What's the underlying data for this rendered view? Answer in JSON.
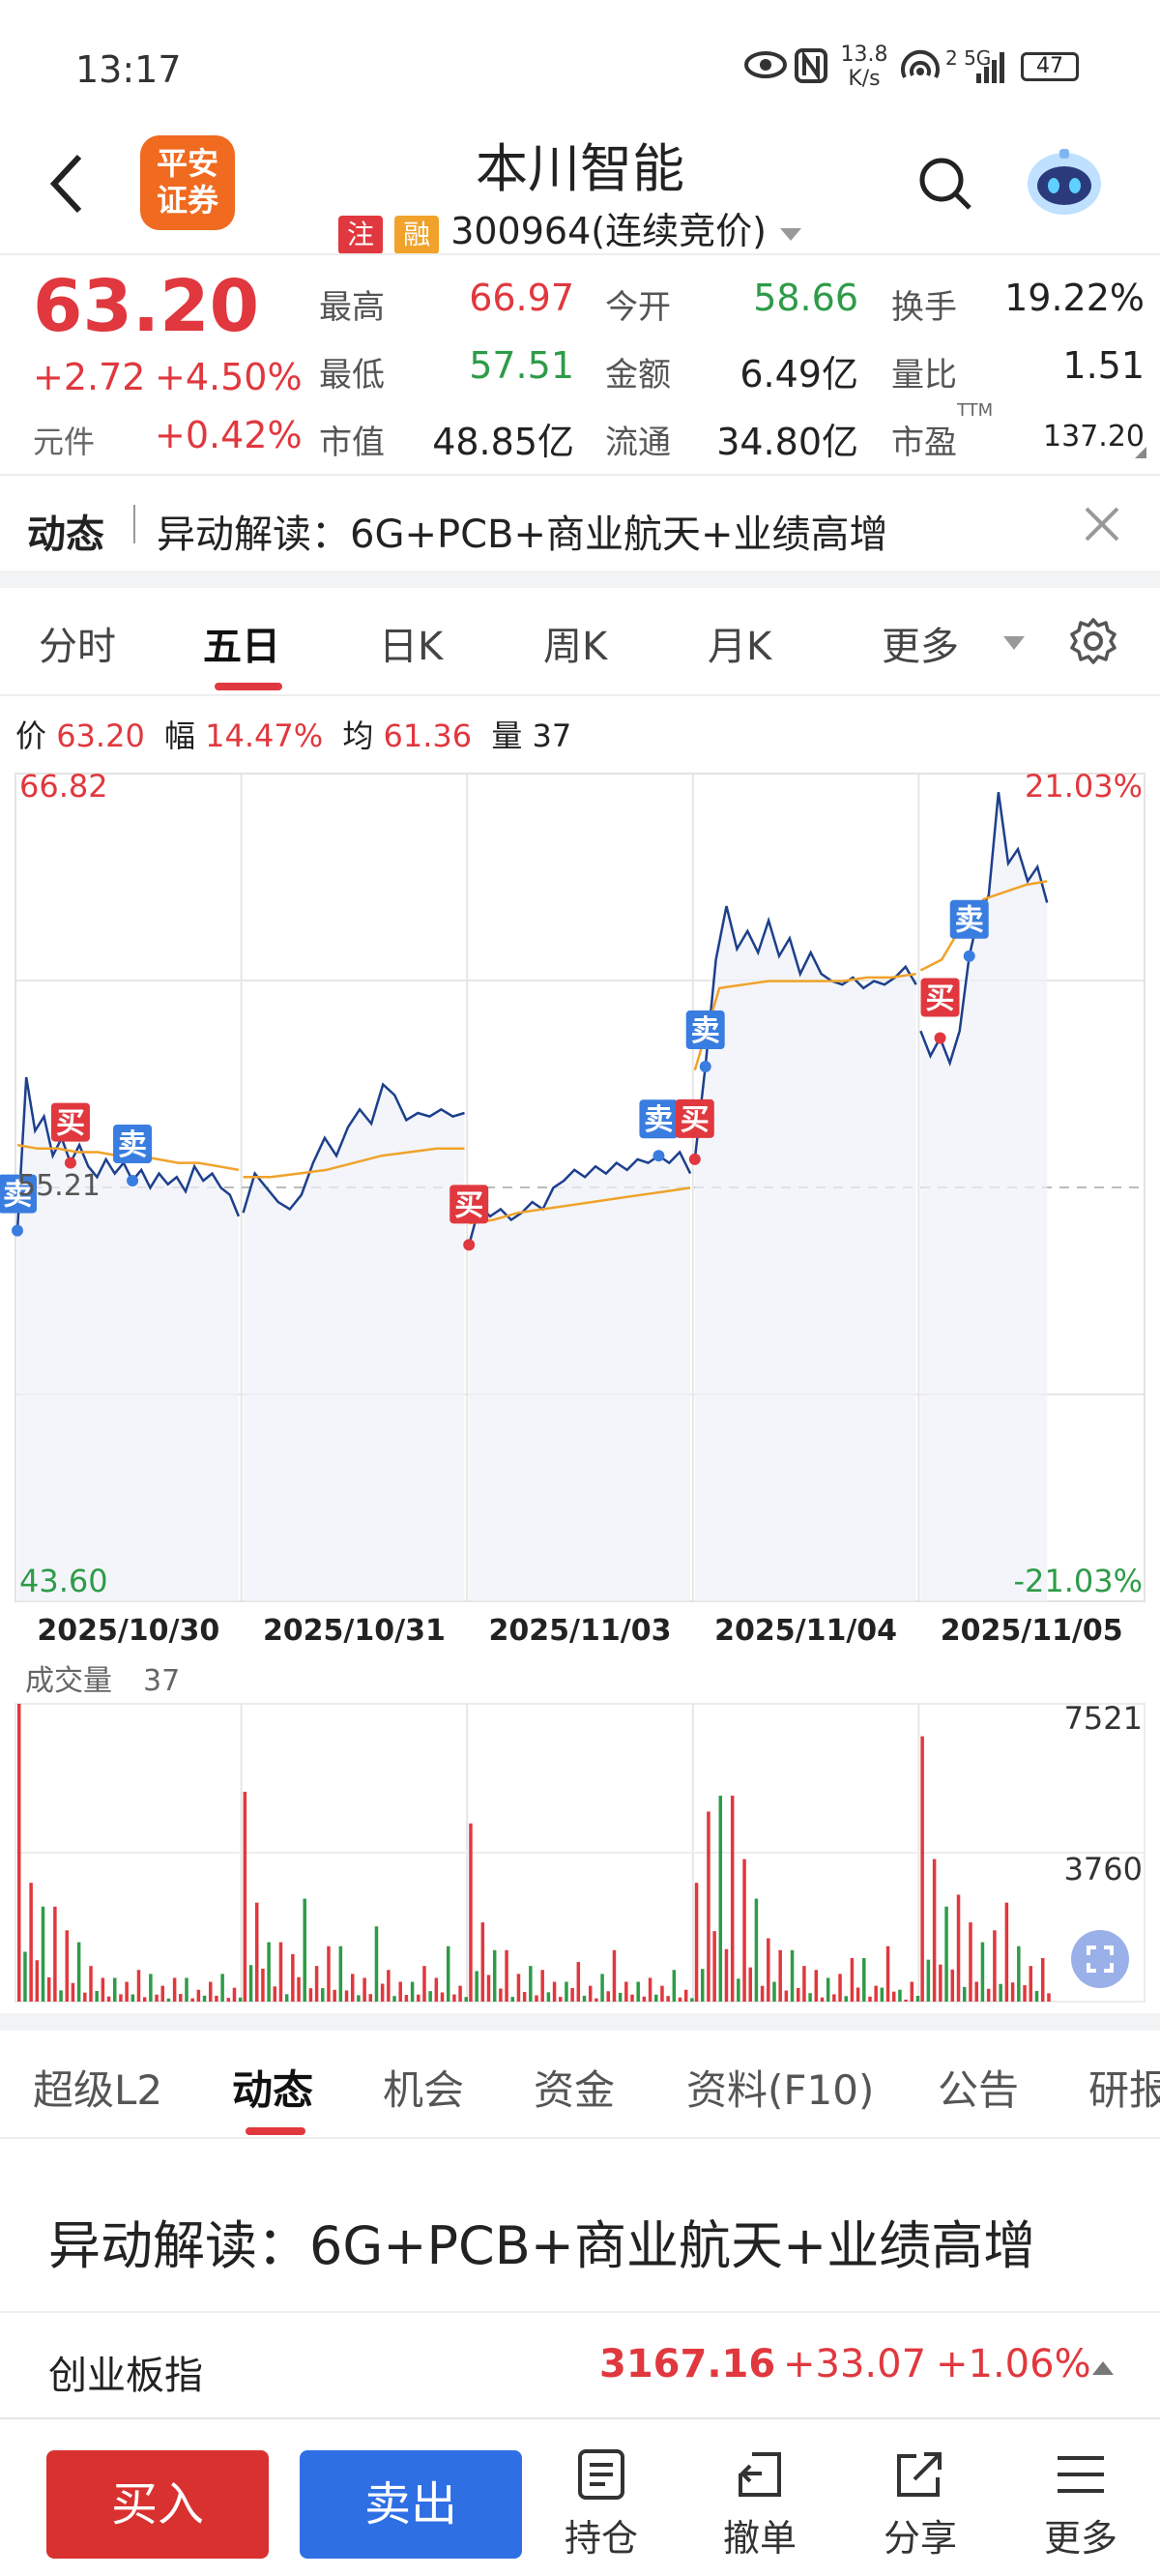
{
  "status": {
    "time": "13:17",
    "net_speed_top": "13.8",
    "net_speed_bottom": "K/s",
    "signal": "2 5G",
    "battery": "47"
  },
  "header": {
    "stock_name": "本川智能",
    "logo_line1": "平安",
    "logo_line2": "证券",
    "tag1": "注",
    "tag2": "融",
    "code": "300964",
    "trade_mode": "(连续竞价)"
  },
  "quote": {
    "price": "63.20",
    "change": "+2.72",
    "change_pct": "+4.50%",
    "unit_label": "元件",
    "unit_change": "+0.42%",
    "rows": [
      {
        "l1": "最高",
        "v1": "66.97",
        "l2": "今开",
        "v2": "58.66",
        "l3": "换手",
        "v3": "19.22%"
      },
      {
        "l1": "最低",
        "v1": "57.51",
        "l2": "金额",
        "v2": "6.49亿",
        "l3": "量比",
        "v3": "1.51"
      },
      {
        "l1": "市值",
        "v1": "48.85亿",
        "l2": "流通",
        "v2": "34.80亿",
        "l3": "市盈",
        "v3": "137.20"
      }
    ],
    "ttm": "TTM"
  },
  "news": {
    "label": "动态",
    "text": "异动解读：6G+PCB+商业航天+业绩高增"
  },
  "chart_tabs": [
    "分时",
    "五日",
    "日K",
    "周K",
    "月K",
    "更多"
  ],
  "chart_info": {
    "price_label": "价",
    "price": "63.20",
    "range_label": "幅",
    "range": "14.47%",
    "avg_label": "均",
    "avg": "61.36",
    "vol_label": "量",
    "vol": "37"
  },
  "chart_data": {
    "type": "line",
    "title": "",
    "ymax_label": "66.82",
    "ymin_label": "43.60",
    "ref_label": "55.21",
    "pct_max": "21.03%",
    "pct_min": "-21.03%",
    "ylim": [
      43.6,
      66.82
    ],
    "ref": 55.21,
    "dates": [
      "2025/10/30",
      "2025/10/31",
      "2025/11/03",
      "2025/11/04",
      "2025/11/05"
    ],
    "price_series": [
      [
        54.0,
        58.3,
        56.8,
        57.2,
        56.1,
        56.6,
        55.9,
        56.4,
        55.8,
        55.5,
        56.0,
        55.6,
        55.9,
        55.4,
        55.7,
        55.2,
        55.6,
        55.3,
        55.5,
        55.1,
        55.8,
        55.4,
        55.6,
        55.2,
        55.0,
        54.4
      ],
      [
        54.5,
        55.6,
        55.2,
        54.8,
        54.6,
        55.0,
        55.9,
        56.6,
        56.1,
        56.9,
        57.4,
        57.0,
        58.1,
        57.8,
        57.1,
        57.3,
        57.2,
        57.4,
        57.2,
        57.3
      ],
      [
        53.6,
        54.7,
        54.4,
        54.6,
        54.3,
        54.5,
        54.8,
        54.6,
        55.2,
        55.4,
        55.7,
        55.5,
        55.8,
        55.6,
        55.9,
        55.7,
        56.0,
        55.9,
        56.1,
        55.9,
        56.2,
        55.6
      ],
      [
        56.0,
        58.6,
        61.6,
        63.1,
        61.9,
        62.4,
        61.8,
        62.7,
        61.7,
        62.2,
        61.2,
        61.8,
        61.2,
        61.0,
        60.9,
        61.1,
        60.8,
        61.0,
        60.9,
        61.1,
        61.4,
        60.9
      ],
      [
        59.6,
        58.9,
        59.4,
        58.7,
        59.6,
        61.7,
        62.9,
        63.4,
        66.3,
        64.3,
        64.7,
        63.8,
        64.2,
        63.2
      ]
    ],
    "avg_series": [
      [
        56.4,
        56.3,
        56.3,
        56.2,
        56.2,
        56.1,
        56.1,
        56.0,
        55.9,
        55.9,
        55.8,
        55.7
      ],
      [
        55.5,
        55.5,
        55.6,
        55.7,
        55.9,
        56.1,
        56.2,
        56.3,
        56.3
      ],
      [
        54.2,
        54.3,
        54.5,
        54.6,
        54.7,
        54.8,
        54.9,
        55.0,
        55.1,
        55.2
      ],
      [
        58.5,
        60.8,
        60.9,
        61.0,
        61.0,
        61.0,
        61.0,
        61.1,
        61.1,
        61.2
      ],
      [
        61.3,
        61.6,
        62.6,
        63.3,
        63.5,
        63.7,
        63.8
      ]
    ],
    "markers": [
      {
        "label": "卖",
        "kind": "sell"
      },
      {
        "label": "买",
        "kind": "buy"
      },
      {
        "label": "卖",
        "kind": "sell"
      },
      {
        "label": "买",
        "kind": "buy"
      },
      {
        "label": "卖",
        "kind": "sell"
      },
      {
        "label": "卖",
        "kind": "sell"
      },
      {
        "label": "买",
        "kind": "buy"
      },
      {
        "label": "买",
        "kind": "buy"
      },
      {
        "label": "卖",
        "kind": "sell"
      }
    ],
    "marker_points": [
      [
        0,
        0
      ],
      [
        0,
        6
      ],
      [
        0,
        13
      ],
      [
        2,
        0
      ],
      [
        2,
        18
      ],
      [
        3,
        1
      ],
      [
        3,
        0
      ],
      [
        4,
        2
      ],
      [
        4,
        5
      ]
    ],
    "volume_label": "成交量",
    "volume_value": "37",
    "vol_max_label": "7521",
    "vol_mid_label": "3760",
    "vol_max": 7521,
    "volume_peaks": [
      [
        7521,
        3000,
        2400,
        1800,
        1500,
        900,
        600,
        500,
        800,
        700,
        400,
        600,
        300,
        500,
        700,
        350
      ],
      [
        5300,
        2500,
        1500,
        1200,
        2600,
        900,
        1400,
        700,
        600,
        1900,
        800,
        500,
        900,
        600,
        1400,
        400
      ],
      [
        4500,
        2000,
        1300,
        700,
        900,
        800,
        500,
        1000,
        400,
        700,
        1300,
        500,
        600,
        400,
        800,
        300
      ],
      [
        3000,
        4800,
        5200,
        3600,
        2600,
        1600,
        1300,
        900,
        800,
        600,
        700,
        1100,
        400,
        1400,
        300,
        500
      ],
      [
        6700,
        3600,
        2400,
        3200,
        2700,
        2000,
        1500,
        1800,
        1300,
        2500,
        1400,
        900,
        1100,
        1400
      ]
    ],
    "colors": {
      "price": "#1d3f8c",
      "avg": "#f0a22a",
      "up": "#e0383e",
      "down": "#2e9b48"
    }
  },
  "info_tabs": [
    "超级L2",
    "动态",
    "机会",
    "资金",
    "资料(F10)",
    "公告",
    "研报"
  ],
  "headline": "异动解读：6G+PCB+商业航天+业绩高增",
  "index": {
    "name": "创业板指",
    "value": "3167.16",
    "change": "+33.07",
    "pct": "+1.06%"
  },
  "footer": {
    "buy": "买入",
    "sell": "卖出",
    "hold": "持仓",
    "cancel": "撤单",
    "share": "分享",
    "more": "更多"
  }
}
